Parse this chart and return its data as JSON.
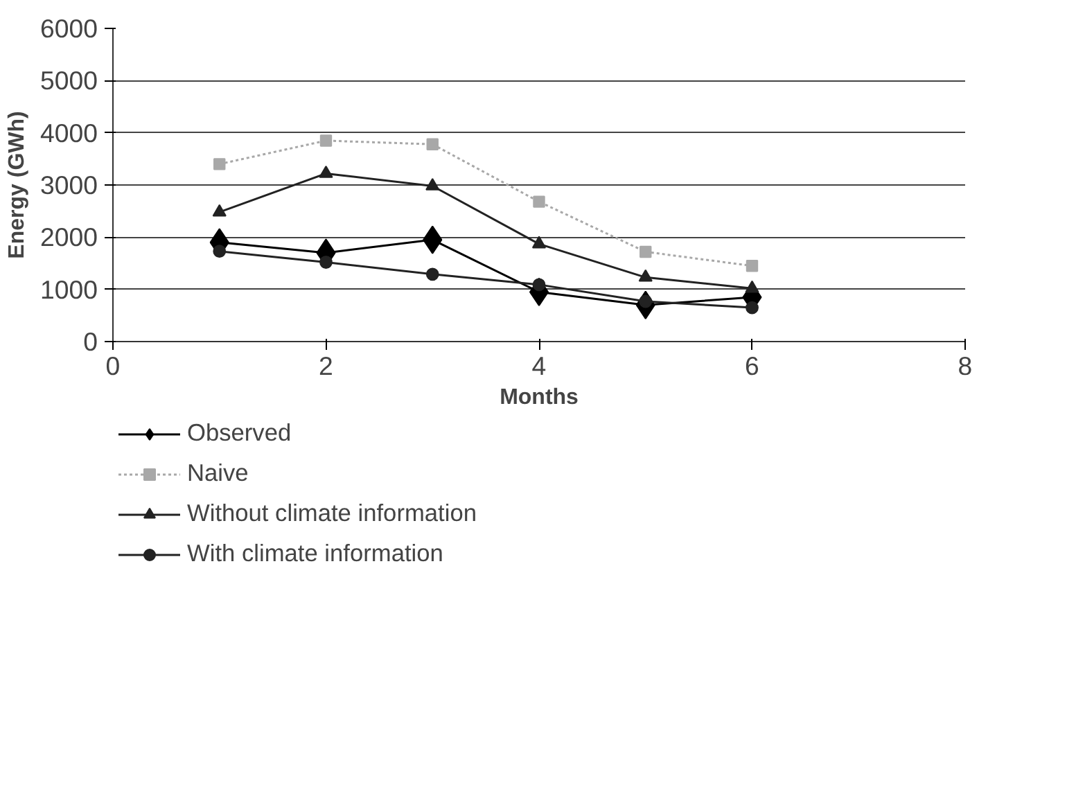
{
  "chart_data": {
    "type": "line",
    "xlabel": "Months",
    "ylabel": "Energy (GWh)",
    "x": [
      1,
      2,
      3,
      4,
      5,
      6
    ],
    "series": [
      {
        "name": "Observed",
        "color": "#000000",
        "marker": "diamond",
        "line_style": "solid",
        "values": [
          1900,
          1700,
          1950,
          950,
          700,
          850
        ]
      },
      {
        "name": "Naive",
        "color": "#a8a8a8",
        "marker": "square",
        "line_style": "dotted",
        "values": [
          3400,
          3850,
          3780,
          2680,
          1720,
          1450
        ]
      },
      {
        "name": "Without climate information",
        "color": "#222222",
        "marker": "triangle",
        "line_style": "solid",
        "values": [
          2480,
          3220,
          2980,
          1870,
          1230,
          1020
        ]
      },
      {
        "name": "With climate information",
        "color": "#222222",
        "marker": "circle",
        "line_style": "solid",
        "values": [
          1730,
          1520,
          1290,
          1090,
          770,
          650
        ]
      }
    ],
    "xlim": [
      0,
      8
    ],
    "xticks": [
      0,
      2,
      4,
      6,
      8
    ],
    "ylim": [
      0,
      6000
    ],
    "yticks": [
      0,
      1000,
      2000,
      3000,
      4000,
      5000,
      6000
    ],
    "grid": "y",
    "legend": "bottom left"
  }
}
